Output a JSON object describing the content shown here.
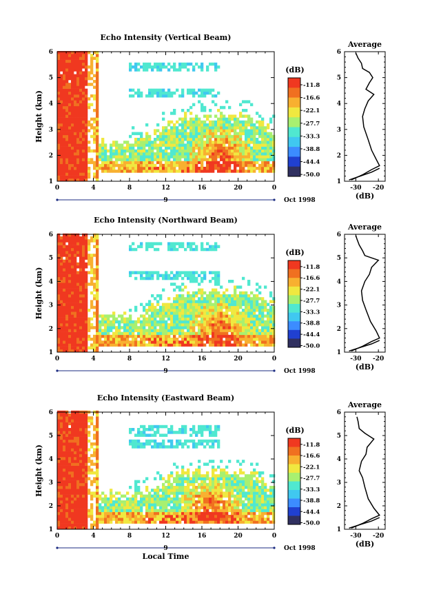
{
  "chart_data": [
    {
      "type": "heatmap",
      "title": "Echo Intensity (Vertical Beam)",
      "ylabel": "Height (km)",
      "x_ticks": [
        "0",
        "4",
        "8",
        "12",
        "16",
        "20",
        "0"
      ],
      "xlim": [
        0,
        24
      ],
      "ylim": [
        1,
        6
      ],
      "y_ticks": [
        "1",
        "2",
        "3",
        "4",
        "5",
        "6"
      ],
      "date_day": "9",
      "date_label": "Oct 1998",
      "colorbar": {
        "unit": "(dB)",
        "values": [
          "-11.8",
          "-16.6",
          "-22.1",
          "-27.7",
          "-33.3",
          "-38.8",
          "-44.4",
          "-50.0"
        ]
      },
      "profile": {
        "title": "Average",
        "xlabel": "(dB)",
        "x_ticks": [
          "-30",
          "-20"
        ],
        "y_ticks": [
          "1",
          "2",
          "3",
          "4",
          "5",
          "6"
        ],
        "points": [
          [
            -32,
            1.05
          ],
          [
            -27,
            1.25
          ],
          [
            -23,
            1.45
          ],
          [
            -19.5,
            1.6
          ],
          [
            -21,
            1.85
          ],
          [
            -23,
            2.2
          ],
          [
            -24.5,
            2.6
          ],
          [
            -26.5,
            3.1
          ],
          [
            -27,
            3.5
          ],
          [
            -26,
            3.8
          ],
          [
            -24.5,
            4.1
          ],
          [
            -22,
            4.35
          ],
          [
            -25.5,
            4.55
          ],
          [
            -24,
            4.8
          ],
          [
            -22.5,
            5.0
          ],
          [
            -24,
            5.2
          ],
          [
            -27,
            5.35
          ],
          [
            -27.5,
            5.55
          ],
          [
            -29,
            5.75
          ],
          [
            -30,
            5.95
          ]
        ],
        "low_curve": [
          [
            -33,
            1.05
          ],
          [
            -28,
            1.2
          ],
          [
            -23,
            1.35
          ],
          [
            -19.5,
            1.5
          ]
        ]
      },
      "field": {
        "echo_top_km": 3.5,
        "band_peak_time_h": 18,
        "band_peak_top_km": 3.3,
        "convective_end_h": 3.5,
        "aloft_layers_km": [
          4.4,
          5.4
        ]
      }
    },
    {
      "type": "heatmap",
      "title": "Echo Intensity (Northward Beam)",
      "ylabel": "Height (km)",
      "x_ticks": [
        "0",
        "4",
        "8",
        "12",
        "16",
        "20",
        "0"
      ],
      "xlim": [
        0,
        24
      ],
      "ylim": [
        1,
        6
      ],
      "y_ticks": [
        "1",
        "2",
        "3",
        "4",
        "5",
        "6"
      ],
      "date_day": "9",
      "date_label": "Oct 1998",
      "colorbar": {
        "unit": "(dB)",
        "values": [
          "-11.8",
          "-16.6",
          "-22.1",
          "-27.7",
          "-33.3",
          "-38.8",
          "-44.4",
          "-50.0"
        ]
      },
      "profile": {
        "title": "Average",
        "xlabel": "(dB)",
        "x_ticks": [
          "-30",
          "-20"
        ],
        "y_ticks": [
          "1",
          "2",
          "3",
          "4",
          "5",
          "6"
        ],
        "points": [
          [
            -32,
            1.05
          ],
          [
            -27,
            1.25
          ],
          [
            -23,
            1.45
          ],
          [
            -19.5,
            1.6
          ],
          [
            -21,
            1.9
          ],
          [
            -23.5,
            2.3
          ],
          [
            -25.5,
            2.8
          ],
          [
            -27,
            3.2
          ],
          [
            -27.5,
            3.6
          ],
          [
            -26,
            4.0
          ],
          [
            -24,
            4.3
          ],
          [
            -23,
            4.6
          ],
          [
            -20,
            4.9
          ],
          [
            -23,
            5.0
          ],
          [
            -26,
            5.1
          ],
          [
            -27,
            5.3
          ],
          [
            -28.5,
            5.55
          ],
          [
            -29.5,
            5.8
          ],
          [
            -30,
            5.95
          ]
        ],
        "low_curve": [
          [
            -33,
            1.05
          ],
          [
            -28,
            1.2
          ],
          [
            -23,
            1.35
          ],
          [
            -19.5,
            1.5
          ]
        ]
      },
      "field": {
        "echo_top_km": 3.6,
        "band_peak_time_h": 18,
        "band_peak_top_km": 3.2,
        "convective_end_h": 3.5,
        "aloft_layers_km": [
          4.3,
          5.5
        ]
      }
    },
    {
      "type": "heatmap",
      "title": "Echo Intensity (Eastward Beam)",
      "ylabel": "Height (km)",
      "xlabel": "Local Time",
      "x_ticks": [
        "0",
        "4",
        "8",
        "12",
        "16",
        "20",
        "0"
      ],
      "xlim": [
        0,
        24
      ],
      "ylim": [
        1,
        6
      ],
      "y_ticks": [
        "1",
        "2",
        "3",
        "4",
        "5",
        "6"
      ],
      "date_day": "9",
      "date_label": "Oct 1998",
      "colorbar": {
        "unit": "(dB)",
        "values": [
          "-11.8",
          "-16.6",
          "-22.1",
          "-27.7",
          "-33.3",
          "-38.8",
          "-44.4",
          "-50.0"
        ]
      },
      "profile": {
        "title": "Average",
        "xlabel": "(dB)",
        "x_ticks": [
          "-30",
          "-20"
        ],
        "y_ticks": [
          "1",
          "2",
          "3",
          "4",
          "5",
          "6"
        ],
        "points": [
          [
            -32,
            1.05
          ],
          [
            -27,
            1.25
          ],
          [
            -23,
            1.45
          ],
          [
            -19.5,
            1.6
          ],
          [
            -22,
            1.9
          ],
          [
            -24.5,
            2.3
          ],
          [
            -26,
            2.8
          ],
          [
            -27,
            3.2
          ],
          [
            -28.5,
            3.5
          ],
          [
            -27.5,
            3.9
          ],
          [
            -25.5,
            4.2
          ],
          [
            -25,
            4.5
          ],
          [
            -22,
            4.85
          ],
          [
            -26,
            5.1
          ],
          [
            -28.5,
            5.3
          ],
          [
            -29,
            5.6
          ],
          [
            -29.5,
            5.8
          ]
        ],
        "low_curve": [
          [
            -33,
            1.05
          ],
          [
            -28,
            1.2
          ],
          [
            -23,
            1.35
          ],
          [
            -19.5,
            1.5
          ]
        ]
      },
      "field": {
        "echo_top_km": 3.4,
        "band_peak_time_h": 17,
        "band_peak_top_km": 3.0,
        "convective_end_h": 3.5,
        "aloft_layers_km": [
          4.6,
          5.2
        ]
      }
    }
  ],
  "colors": {
    "scale": [
      "#303060",
      "#2040d0",
      "#3c8cff",
      "#40c8f0",
      "#50e8d0",
      "#a8f070",
      "#f0e840",
      "#f8b030",
      "#f07020",
      "#f03820"
    ],
    "date_axis": "#1a2a80"
  }
}
